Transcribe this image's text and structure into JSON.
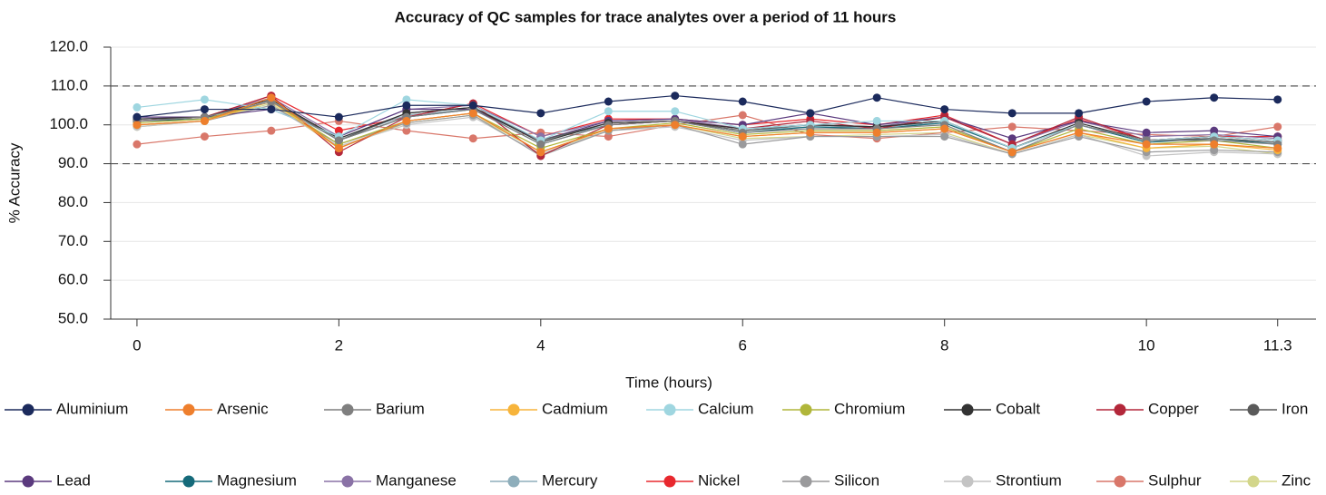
{
  "chart_data": {
    "type": "line",
    "title": "Accuracy of QC samples for trace analytes over a period of 11 hours",
    "x_label": "Time (hours)",
    "y_label": "% Accuracy",
    "x": [
      0,
      0.67,
      1.33,
      2,
      2.67,
      3.33,
      4,
      4.67,
      5.33,
      6,
      6.67,
      7.33,
      8,
      8.67,
      9.33,
      10,
      10.67,
      11.3
    ],
    "xlim": [
      -0.26,
      11.68
    ],
    "xticks": [
      0,
      2,
      4,
      6,
      8,
      10,
      11.3
    ],
    "ylim": [
      50,
      120
    ],
    "yticks": [
      {
        "value": 50,
        "label": "50.0"
      },
      {
        "value": 60,
        "label": "60.0"
      },
      {
        "value": 70,
        "label": "70.0"
      },
      {
        "value": 80,
        "label": "80.0"
      },
      {
        "value": 90,
        "label": "90.0"
      },
      {
        "value": 100,
        "label": "100.0"
      },
      {
        "value": 110,
        "label": "110.0"
      },
      {
        "value": 120,
        "label": "120.0"
      }
    ],
    "grid": true,
    "reference_lines": [
      110,
      90
    ],
    "legend": "bottom",
    "series": [
      {
        "name": "Aluminium",
        "color": "#1b2a5c",
        "values": [
          102,
          104,
          104,
          102,
          105,
          105,
          103,
          106,
          107.5,
          106,
          103,
          107,
          104,
          103,
          103,
          106,
          107,
          106.5
        ]
      },
      {
        "name": "Arsenic",
        "color": "#ee7f2d",
        "values": [
          100,
          101,
          107,
          94,
          101,
          103,
          93,
          99,
          100,
          97,
          98,
          98,
          99,
          93,
          98,
          95,
          95,
          94
        ]
      },
      {
        "name": "Barium",
        "color": "#7f7f7f",
        "values": [
          101,
          102,
          106,
          96,
          102,
          104,
          95,
          100,
          101,
          98,
          99,
          99,
          100,
          93,
          100,
          96,
          96,
          95
        ]
      },
      {
        "name": "Cadmium",
        "color": "#f7b43b",
        "values": [
          100,
          101,
          106,
          94,
          101,
          103,
          93,
          99,
          100,
          97,
          98,
          98,
          99,
          93,
          98,
          94,
          95,
          93.5
        ]
      },
      {
        "name": "Calcium",
        "color": "#9fd6e0",
        "values": [
          104.5,
          106.5,
          104,
          97,
          106.5,
          105,
          96,
          103.5,
          103.5,
          99,
          100,
          101,
          101,
          94,
          100,
          96,
          97,
          96
        ]
      },
      {
        "name": "Chromium",
        "color": "#b0b63a",
        "values": [
          100.5,
          101.5,
          106,
          95,
          101,
          103,
          94,
          99,
          100.5,
          97.5,
          98.5,
          98.5,
          99.5,
          93,
          99,
          95,
          96,
          94
        ]
      },
      {
        "name": "Cobalt",
        "color": "#333333",
        "values": [
          101.5,
          102,
          106.5,
          96.5,
          103,
          104.5,
          95.5,
          100.5,
          101,
          99,
          100,
          99.5,
          101,
          94,
          100.5,
          96,
          97,
          96
        ]
      },
      {
        "name": "Copper",
        "color": "#b3273a",
        "values": [
          101,
          102,
          107.5,
          93,
          102,
          105.5,
          92,
          100,
          101,
          99,
          101,
          99,
          102,
          95,
          102,
          96,
          97,
          96
        ]
      },
      {
        "name": "Iron",
        "color": "#5a5a5a",
        "values": [
          101,
          102,
          106.5,
          96,
          103,
          104.5,
          96,
          100.5,
          101,
          98.5,
          100,
          99.5,
          101,
          94,
          100,
          96,
          96.5,
          95.5
        ]
      },
      {
        "name": "Lead",
        "color": "#5b3a7e",
        "values": [
          102,
          102,
          104,
          97,
          104,
          104,
          96,
          101,
          101.5,
          100,
          103,
          100,
          102,
          96.5,
          101,
          98,
          98.5,
          97
        ]
      },
      {
        "name": "Magnesium",
        "color": "#156a7a",
        "values": [
          101,
          101.5,
          106,
          96,
          102,
          104,
          95,
          100,
          101,
          98,
          99.5,
          99,
          100.5,
          94,
          100,
          95.5,
          96.5,
          95
        ]
      },
      {
        "name": "Manganese",
        "color": "#8a72a6",
        "values": [
          101.5,
          102,
          107,
          97,
          104,
          105,
          97,
          101,
          101.5,
          99,
          100,
          99.5,
          102,
          95,
          101,
          97,
          97.5,
          96.5
        ]
      },
      {
        "name": "Mercury",
        "color": "#8eaebb",
        "values": [
          101,
          102,
          106,
          96.5,
          102.5,
          104,
          96,
          100,
          101,
          98.5,
          99.5,
          99.5,
          100.5,
          94,
          100,
          96,
          96.5,
          95.5
        ]
      },
      {
        "name": "Nickel",
        "color": "#e8282e",
        "values": [
          101,
          102,
          107.5,
          98.5,
          102,
          105.5,
          97,
          101.5,
          101.5,
          100,
          101.5,
          100,
          102.5,
          95,
          101.5,
          96,
          97,
          97
        ]
      },
      {
        "name": "Silicon",
        "color": "#9a9a9c",
        "values": [
          100,
          101,
          105,
          95,
          100.5,
          102.5,
          92,
          98.5,
          100,
          95,
          97,
          97,
          97,
          92.5,
          97,
          93,
          93.5,
          93
        ]
      },
      {
        "name": "Strontium",
        "color": "#c4c4c4",
        "values": [
          99.5,
          101,
          105,
          94.5,
          100,
          102,
          92.5,
          98.5,
          99.5,
          96,
          97,
          97,
          97.5,
          92.5,
          97.5,
          92,
          93,
          92.5
        ]
      },
      {
        "name": "Sulphur",
        "color": "#d9776a",
        "values": [
          95,
          97,
          98.5,
          101,
          98.5,
          96.5,
          98,
          97,
          100,
          102.5,
          97.5,
          96.5,
          98,
          99.5,
          98.5,
          97.5,
          97,
          99.5
        ]
      },
      {
        "name": "Zinc",
        "color": "#d3d68a",
        "values": [
          99.5,
          101,
          105.5,
          94,
          100.5,
          102.5,
          93,
          98.5,
          100,
          96.5,
          97,
          97.5,
          98,
          92.5,
          97.5,
          94,
          94.5,
          92.5
        ]
      }
    ]
  }
}
